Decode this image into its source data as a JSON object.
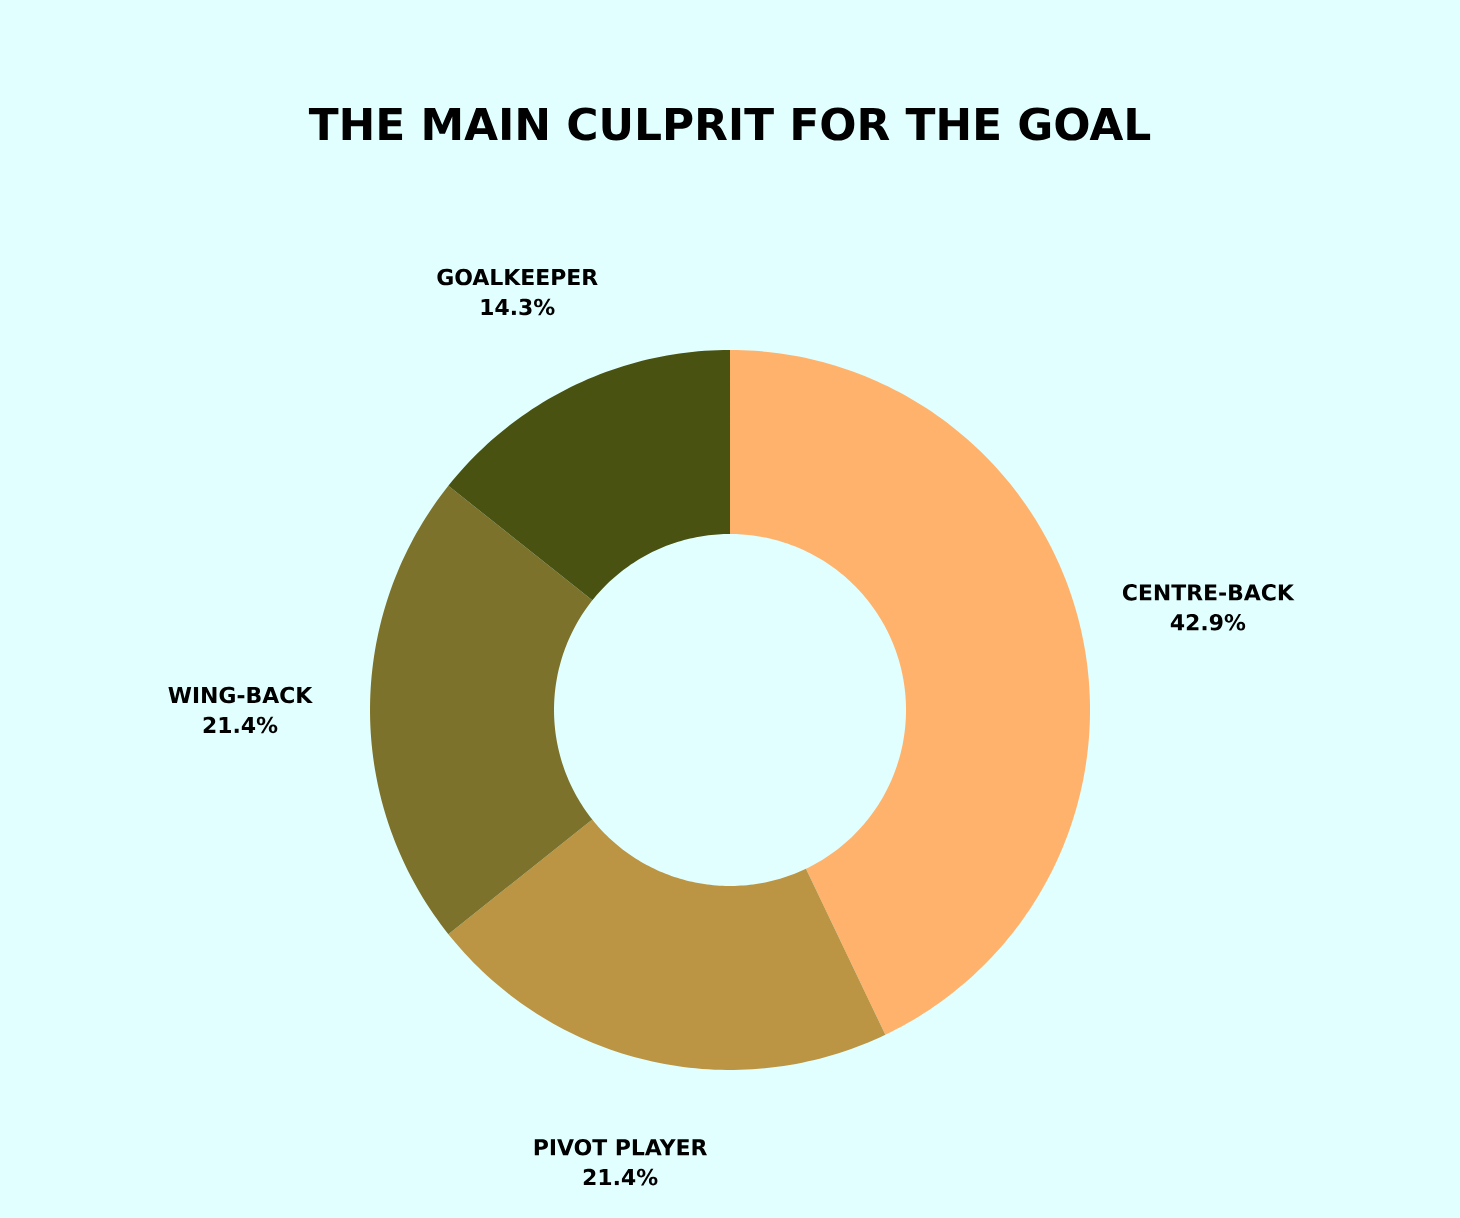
{
  "chart_data": {
    "type": "donut",
    "title": "THE MAIN CULPRIT FOR THE GOAL",
    "categories": [
      "CENTRE-BACK",
      "PIVOT PLAYER",
      "WING-BACK",
      "GOALKEEPER"
    ],
    "values": [
      42.9,
      21.4,
      21.4,
      14.3
    ],
    "value_labels": [
      "42.9%",
      "21.4%",
      "21.4%",
      "14.3%"
    ],
    "colors": [
      "#ffb26b",
      "#bb9444",
      "#7c722b",
      "#4a5211"
    ]
  }
}
